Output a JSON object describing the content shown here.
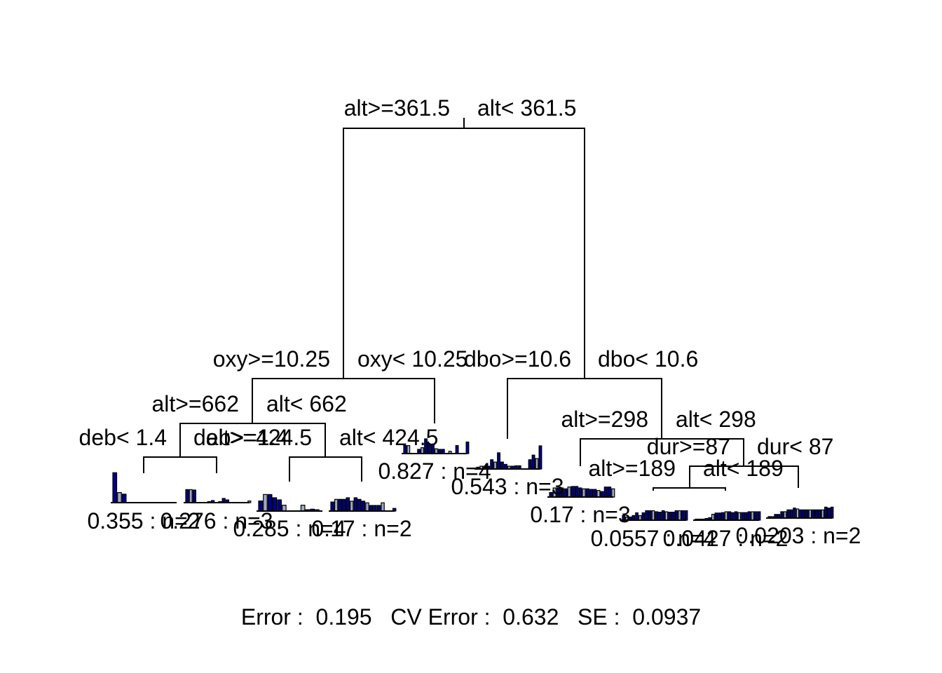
{
  "tree": {
    "splits": [
      {
        "id": "root",
        "left": "alt>=361.5",
        "right": "alt< 361.5"
      },
      {
        "id": "n2",
        "left": "oxy>=10.25",
        "right": "oxy< 10.25"
      },
      {
        "id": "n3",
        "left": "dbo>=10.6",
        "right": "dbo< 10.6"
      },
      {
        "id": "n4",
        "left": "alt>=662",
        "right": "alt< 662"
      },
      {
        "id": "n7",
        "left": "alt>=298",
        "right": "alt< 298"
      },
      {
        "id": "n8",
        "left": "deb< 1.4",
        "right": "deb>=1.4"
      },
      {
        "id": "n9",
        "left": "alt>=424.5",
        "right": "alt< 424.5"
      },
      {
        "id": "n15",
        "left": "dur>=87",
        "right": "dur< 87"
      },
      {
        "id": "n30",
        "left": "alt>=189",
        "right": "alt< 189"
      }
    ],
    "leaves": [
      {
        "id": "L1",
        "label": "0.355 : n=2",
        "bars": [
          0.95,
          0.32,
          0.27,
          0,
          0,
          0,
          0,
          0,
          0,
          0,
          0,
          0,
          0,
          0
        ]
      },
      {
        "id": "L2",
        "label": "0.276 : n=3",
        "bars": [
          0.62,
          0.62,
          0.6,
          0,
          0,
          0,
          0.05,
          0.1,
          0,
          0.05,
          0.2,
          0.13,
          0,
          0,
          0,
          0,
          0,
          0.08
        ]
      },
      {
        "id": "L3",
        "label": "0.285 : n=4",
        "bars": [
          0.38,
          0.62,
          0.62,
          0.5,
          0.42,
          0.22,
          0,
          0,
          0,
          0.22,
          0.05,
          0.07,
          0.05
        ]
      },
      {
        "id": "L4",
        "label": "0.17 : n=2",
        "bars": [
          0.34,
          0.44,
          0.44,
          0.44,
          0.5,
          0.37,
          0.5,
          0.44,
          0.37,
          0.31,
          0.21,
          0.21,
          0.21,
          0.31,
          0,
          0,
          0.1
        ]
      },
      {
        "id": "L5",
        "label": "0.827 : n=4",
        "bars": [
          0.38,
          0.38,
          0,
          0,
          0.2,
          0.28,
          0.7,
          0.44,
          0.42,
          0.23,
          0.2,
          0.2,
          0,
          0.11,
          0,
          0.38,
          0,
          0,
          0.55
        ]
      },
      {
        "id": "L6",
        "label": "0.543 : n=3",
        "bars": [
          0.08,
          0.12,
          0.12,
          0.12,
          0.4,
          0.3,
          0.7,
          0.3,
          0.2,
          0.12,
          0.12,
          0.14,
          0.14,
          0,
          0,
          0.4,
          0.6,
          0.45,
          1.0
        ]
      },
      {
        "id": "L7",
        "label": "0.17 : n=3",
        "bars": [
          0.25,
          0.5,
          0.5,
          0.5,
          0.45,
          0.55,
          0.58,
          0.58,
          0.5,
          0.45,
          0.45,
          0.42,
          0.42,
          0.36,
          0.3,
          0.55,
          0.55,
          0.45
        ]
      },
      {
        "id": "L8",
        "label": "0.0557 : n=4",
        "bars": [
          0.22,
          0.15,
          0.15,
          0.22,
          0.35,
          0.22,
          0.35,
          0.45,
          0.45,
          0.45,
          0.4,
          0.38,
          0.45,
          0.4,
          0.38,
          0.38,
          0.45,
          0.45,
          0.45,
          0.45
        ]
      },
      {
        "id": "L9",
        "label": "0.0427 : n=2",
        "bars": [
          0.05,
          0.05,
          0.05,
          0.08,
          0.12,
          0.28,
          0.34,
          0.34,
          0.36,
          0.4,
          0.4,
          0.36,
          0.4,
          0.36,
          0.36,
          0.36,
          0.4,
          0.4,
          0.4,
          0.4
        ]
      },
      {
        "id": "L10",
        "label": "0.0203 : n=2",
        "bars": [
          0.08,
          0.08,
          0.2,
          0.2,
          0.35,
          0.35,
          0.45,
          0.45,
          0.55,
          0.5,
          0.45,
          0.45,
          0.45,
          0.45,
          0.45,
          0.45,
          0.45,
          0.45,
          0.6,
          0.55,
          0.6
        ]
      }
    ]
  },
  "footer": {
    "text": "Error :  0.195   CV Error :  0.632   SE :  0.0937"
  },
  "colors": {
    "bar_fill": "#00008B",
    "bar_fill_light": "#9FA9C8",
    "line": "#000000"
  }
}
